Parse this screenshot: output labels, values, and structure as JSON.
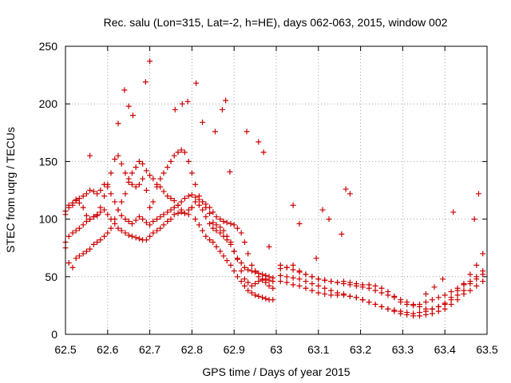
{
  "chart_data": {
    "type": "scatter",
    "title": "Rec. salu (Lon=315, Lat=-2, h=HE), days 062-063, 2015, window 002",
    "xlabel": "GPS time / Days of year 2015",
    "ylabel": "STEC from uqrg / TECUs",
    "xlim": [
      62.5,
      63.5
    ],
    "ylim": [
      0,
      250
    ],
    "xticks": [
      62.5,
      62.6,
      62.7,
      62.8,
      62.9,
      63.0,
      63.1,
      63.2,
      63.3,
      63.4,
      63.5
    ],
    "xtick_labels": [
      "62.5",
      "62.6",
      "62.7",
      "62.8",
      "62.9",
      "63",
      "63.1",
      "63.2",
      "63.3",
      "63.4",
      "63.5"
    ],
    "yticks": [
      0,
      50,
      100,
      150,
      200,
      250
    ],
    "ytick_labels": [
      "0",
      "50",
      "100",
      "150",
      "200",
      "250"
    ],
    "grid": true,
    "marker": "+",
    "color": "#cc0000",
    "x": [
      62.5,
      62.508,
      62.517,
      62.525,
      62.533,
      62.542,
      62.55,
      62.558,
      62.567,
      62.575,
      62.583,
      62.592,
      62.6,
      62.608,
      62.617,
      62.625,
      62.633,
      62.642,
      62.65,
      62.658,
      62.667,
      62.675,
      62.683,
      62.692,
      62.7,
      62.708,
      62.717,
      62.725,
      62.733,
      62.742,
      62.75,
      62.758,
      62.767,
      62.775,
      62.783,
      62.792,
      62.8,
      62.808,
      62.817,
      62.825,
      62.833,
      62.842,
      62.85,
      62.858,
      62.867,
      62.875,
      62.883,
      62.892,
      62.9,
      62.908,
      62.917,
      62.925,
      62.933,
      62.942,
      62.95,
      62.958,
      62.967,
      62.975,
      62.983,
      62.992,
      62.5,
      62.508,
      62.517,
      62.525,
      62.533,
      62.542,
      62.55,
      62.558,
      62.567,
      62.575,
      62.583,
      62.592,
      62.6,
      62.608,
      62.617,
      62.625,
      62.633,
      62.642,
      62.65,
      62.658,
      62.667,
      62.675,
      62.683,
      62.692,
      62.7,
      62.708,
      62.717,
      62.725,
      62.733,
      62.742,
      62.75,
      62.758,
      62.767,
      62.775,
      62.783,
      62.792,
      62.8,
      62.808,
      62.817,
      62.825,
      62.833,
      62.842,
      62.85,
      62.858,
      62.867,
      62.875,
      62.883,
      62.892,
      62.9,
      62.908,
      62.917,
      62.925,
      62.933,
      62.942,
      62.95,
      62.958,
      62.967,
      62.975,
      62.983,
      62.992,
      62.5,
      62.508,
      62.517,
      62.525,
      62.533,
      62.542,
      62.55,
      62.558,
      62.567,
      62.575,
      62.583,
      62.592,
      62.6,
      62.608,
      62.617,
      62.625,
      62.633,
      62.642,
      62.65,
      62.658,
      62.667,
      62.675,
      62.683,
      62.692,
      62.7,
      62.708,
      62.717,
      62.725,
      62.733,
      62.742,
      62.75,
      62.758,
      62.767,
      62.775,
      62.783,
      62.792,
      62.8,
      62.808,
      62.817,
      62.825,
      62.833,
      62.842,
      62.85,
      62.858,
      62.867,
      62.875,
      62.883,
      62.892,
      62.9,
      62.908,
      62.917,
      62.925,
      62.933,
      62.942,
      62.95,
      62.958,
      62.967,
      62.975,
      62.983,
      62.992,
      62.5,
      62.508,
      62.517,
      62.525,
      62.533,
      62.542,
      62.55,
      62.558,
      62.567,
      62.575,
      62.583,
      62.592,
      62.6,
      62.608,
      62.617,
      62.625,
      62.633,
      62.642,
      62.65,
      62.658,
      62.667,
      62.675,
      62.683,
      62.692,
      62.7,
      62.708,
      62.717,
      62.725,
      62.733,
      62.742,
      62.75,
      62.758,
      62.767,
      62.775,
      62.783,
      62.792,
      62.8,
      62.808,
      62.817,
      62.825,
      62.833,
      62.842,
      62.85,
      62.858,
      62.867,
      62.875,
      62.883,
      62.892,
      62.9,
      62.908,
      62.917,
      62.925,
      62.933,
      62.942,
      62.95,
      62.958,
      62.967,
      62.975,
      62.983,
      62.992,
      62.558,
      62.625,
      62.64,
      62.65,
      62.66,
      62.69,
      62.7,
      62.76,
      62.777,
      62.79,
      62.81,
      62.825,
      62.855,
      62.872,
      62.88,
      62.89,
      62.93,
      62.958,
      62.97,
      62.983,
      63.01,
      63.025,
      63.04,
      63.055,
      63.07,
      63.085,
      63.1,
      63.115,
      63.13,
      63.145,
      63.16,
      63.175,
      63.19,
      63.205,
      63.22,
      63.235,
      63.25,
      63.265,
      63.28,
      63.295,
      63.31,
      63.325,
      63.34,
      63.355,
      63.37,
      63.385,
      63.4,
      63.415,
      63.43,
      63.445,
      63.46,
      63.475,
      63.49,
      63.01,
      63.025,
      63.04,
      63.055,
      63.07,
      63.085,
      63.1,
      63.115,
      63.13,
      63.145,
      63.16,
      63.175,
      63.19,
      63.205,
      63.22,
      63.235,
      63.25,
      63.265,
      63.28,
      63.295,
      63.31,
      63.325,
      63.34,
      63.355,
      63.37,
      63.385,
      63.4,
      63.415,
      63.43,
      63.445,
      63.46,
      63.475,
      63.49,
      63.01,
      63.025,
      63.04,
      63.055,
      63.07,
      63.085,
      63.1,
      63.115,
      63.13,
      63.145,
      63.16,
      63.175,
      63.19,
      63.205,
      63.22,
      63.235,
      63.25,
      63.265,
      63.28,
      63.295,
      63.31,
      63.325,
      63.34,
      63.355,
      63.37,
      63.385,
      63.4,
      63.415,
      63.43,
      63.445,
      63.46,
      63.475,
      63.49,
      63.01,
      63.025,
      63.04,
      63.055,
      63.07,
      63.085,
      63.1,
      63.115,
      63.13,
      63.145,
      63.16,
      63.175,
      63.19,
      63.205,
      63.22,
      63.235,
      63.25,
      63.265,
      63.28,
      63.295,
      63.31,
      63.325,
      63.34,
      63.355,
      63.37,
      63.385,
      63.4,
      63.415,
      63.43,
      63.445,
      63.46,
      63.475,
      63.49,
      63.04,
      63.055,
      63.095,
      63.11,
      63.125,
      63.155,
      63.165,
      63.175,
      63.355,
      63.375,
      63.395,
      63.42,
      63.47,
      63.48
    ],
    "y": [
      107,
      112,
      114,
      117,
      114,
      110,
      103,
      100,
      102,
      103,
      110,
      120,
      130,
      140,
      152,
      155,
      148,
      140,
      135,
      130,
      128,
      130,
      135,
      125,
      110,
      115,
      128,
      135,
      140,
      145,
      150,
      155,
      158,
      160,
      158,
      150,
      140,
      130,
      120,
      115,
      110,
      105,
      97,
      95,
      93,
      90,
      85,
      80,
      72,
      65,
      55,
      48,
      45,
      42,
      44,
      46,
      47,
      48,
      47,
      46,
      104,
      110,
      112,
      116,
      118,
      120,
      122,
      125,
      124,
      122,
      125,
      130,
      128,
      122,
      115,
      108,
      103,
      100,
      98,
      96,
      99,
      102,
      100,
      97,
      95,
      98,
      100,
      102,
      104,
      106,
      108,
      110,
      112,
      115,
      118,
      120,
      121,
      119,
      117,
      115,
      113,
      110,
      106,
      102,
      100,
      98,
      97,
      96,
      95,
      92,
      88,
      80,
      70,
      60,
      55,
      50,
      48,
      45,
      42,
      40,
      80,
      85,
      88,
      90,
      92,
      95,
      98,
      100,
      102,
      104,
      106,
      108,
      104,
      100,
      96,
      92,
      90,
      88,
      86,
      85,
      84,
      83,
      82,
      82,
      85,
      88,
      90,
      92,
      95,
      98,
      100,
      104,
      105,
      106,
      105,
      104,
      110,
      115,
      112,
      108,
      102,
      96,
      92,
      90,
      88,
      85,
      82,
      78,
      72,
      66,
      62,
      58,
      56,
      55,
      54,
      53,
      52,
      51,
      50,
      49,
      75,
      62,
      58,
      66,
      68,
      70,
      72,
      74,
      78,
      80,
      82,
      85,
      88,
      92,
      100,
      108,
      115,
      122,
      132,
      140,
      145,
      150,
      148,
      142,
      138,
      135,
      130,
      128,
      124,
      120,
      118,
      116,
      112,
      108,
      105,
      108,
      110,
      100,
      95,
      90,
      85,
      82,
      80,
      76,
      72,
      68,
      64,
      60,
      55,
      50,
      46,
      42,
      38,
      36,
      34,
      33,
      32,
      31,
      30,
      30,
      155,
      183,
      212,
      198,
      190,
      219,
      237,
      195,
      200,
      202,
      218,
      184,
      176,
      195,
      203,
      141,
      176,
      167,
      158,
      76,
      57,
      58,
      60,
      55,
      52,
      50,
      48,
      47,
      46,
      45,
      46,
      45,
      44,
      43,
      43,
      42,
      40,
      37,
      33,
      28,
      26,
      25,
      26,
      28,
      30,
      32,
      34,
      37,
      40,
      43,
      46,
      50,
      55,
      46,
      45,
      43,
      42,
      40,
      38,
      36,
      35,
      34,
      34,
      35,
      33,
      32,
      30,
      28,
      26,
      24,
      22,
      20,
      18,
      17,
      16,
      16,
      17,
      18,
      20,
      22,
      26,
      30,
      35,
      38,
      42,
      46,
      51,
      50,
      49,
      48,
      46,
      44,
      42,
      40,
      38,
      36,
      34,
      33,
      32,
      30,
      28,
      26,
      24,
      22,
      21,
      20,
      19,
      18,
      19,
      20,
      22,
      24,
      26,
      30,
      34,
      38,
      44,
      48,
      52,
      60,
      58,
      56,
      54,
      52,
      50,
      48,
      47,
      46,
      45,
      44,
      43,
      42,
      41,
      40,
      38,
      36,
      34,
      32,
      30,
      28,
      26,
      24,
      22,
      22,
      24,
      27,
      32,
      38,
      44,
      52,
      60,
      70,
      112,
      96,
      66,
      108,
      100,
      87,
      126,
      122,
      35,
      41,
      48,
      106,
      100,
      122
    ]
  }
}
